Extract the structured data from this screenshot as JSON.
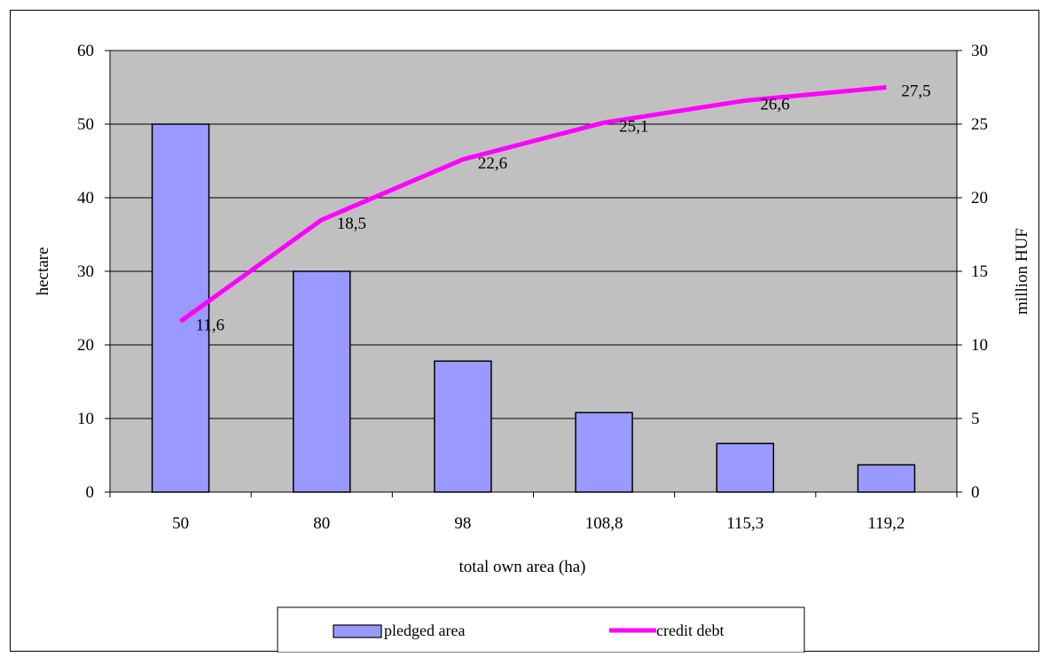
{
  "chart_data": {
    "type": "bar",
    "title": "",
    "xlabel": "total own area (ha)",
    "ylabel": "hectare",
    "y2label": "million HUF",
    "categories": [
      "50",
      "80",
      "98",
      "108,8",
      "115,3",
      "119,2"
    ],
    "ylim": [
      0,
      60
    ],
    "y_ticks": [
      0,
      10,
      20,
      30,
      40,
      50,
      60
    ],
    "y2lim": [
      0,
      30
    ],
    "y2_ticks": [
      0,
      5,
      10,
      15,
      20,
      25,
      30
    ],
    "grid": true,
    "legend_position": "bottom",
    "plot_background": "#c0c0c0",
    "series": [
      {
        "name": "pledged area",
        "type": "bar",
        "axis": "left",
        "color": "#9999ff",
        "values": [
          50,
          30,
          17.8,
          10.8,
          6.6,
          3.7
        ]
      },
      {
        "name": "credit debt",
        "type": "line",
        "axis": "right",
        "color": "#ff00ff",
        "values": [
          11.6,
          18.5,
          22.6,
          25.1,
          26.6,
          27.5
        ],
        "data_labels": [
          "11,6",
          "18,5",
          "22,6",
          "25,1",
          "26,6",
          "27,5"
        ]
      }
    ]
  }
}
